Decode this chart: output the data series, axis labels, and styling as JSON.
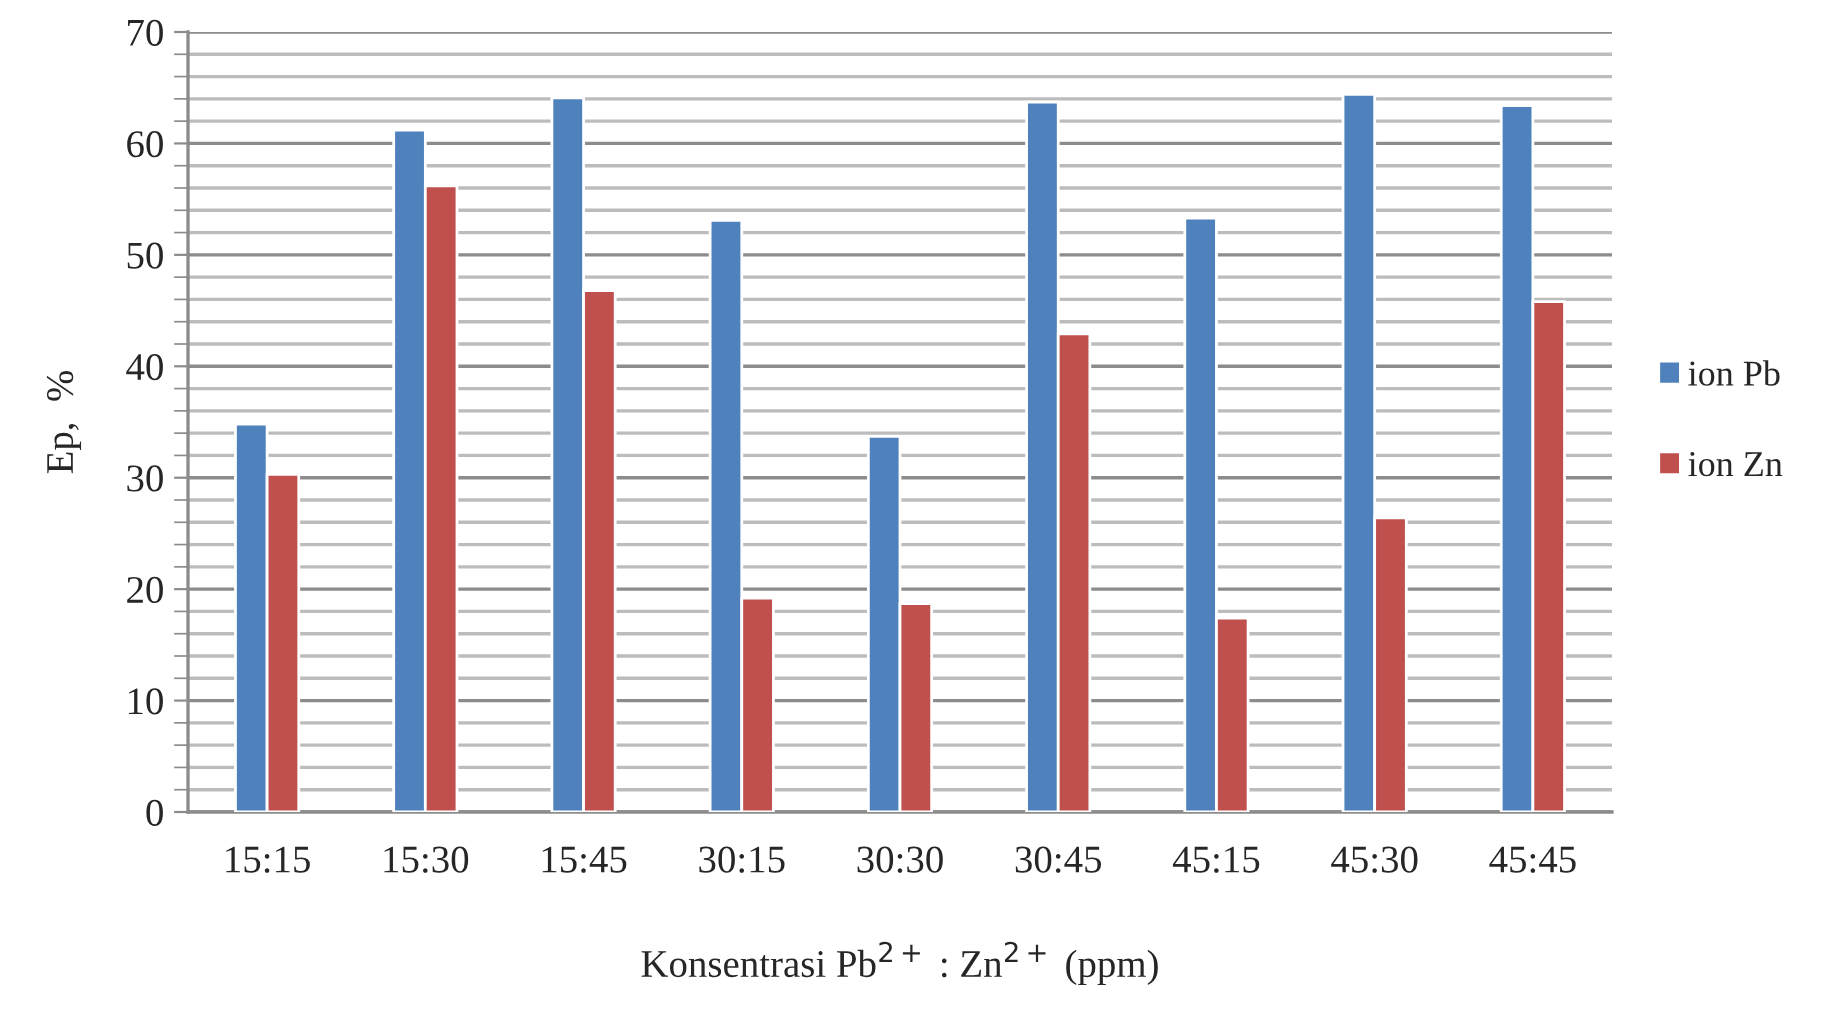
{
  "chart_data": {
    "type": "bar",
    "xlabel": "Konsentrasi Pb$^{2+}$ : Zn$^{2+}$ (ppm)",
    "ylabel": "Ep,  %",
    "categories": [
      "15:15",
      "15:30",
      "15:45",
      "30:15",
      "30:30",
      "30:45",
      "45:15",
      "45:30",
      "45:45"
    ],
    "series": [
      {
        "name": "ion Pb",
        "color": "#4f81bd",
        "values": [
          34.8,
          61.2,
          64.1,
          53.1,
          33.7,
          63.7,
          53.3,
          64.4,
          63.4
        ]
      },
      {
        "name": "ion Zn",
        "color": "#c0504d",
        "values": [
          30.3,
          56.2,
          46.8,
          19.2,
          18.7,
          42.9,
          17.4,
          26.4,
          45.8
        ]
      }
    ],
    "ylim": [
      0,
      70
    ],
    "yticks": [
      0,
      10,
      20,
      30,
      40,
      50,
      60,
      70
    ],
    "grid": "y",
    "legend": "right"
  }
}
